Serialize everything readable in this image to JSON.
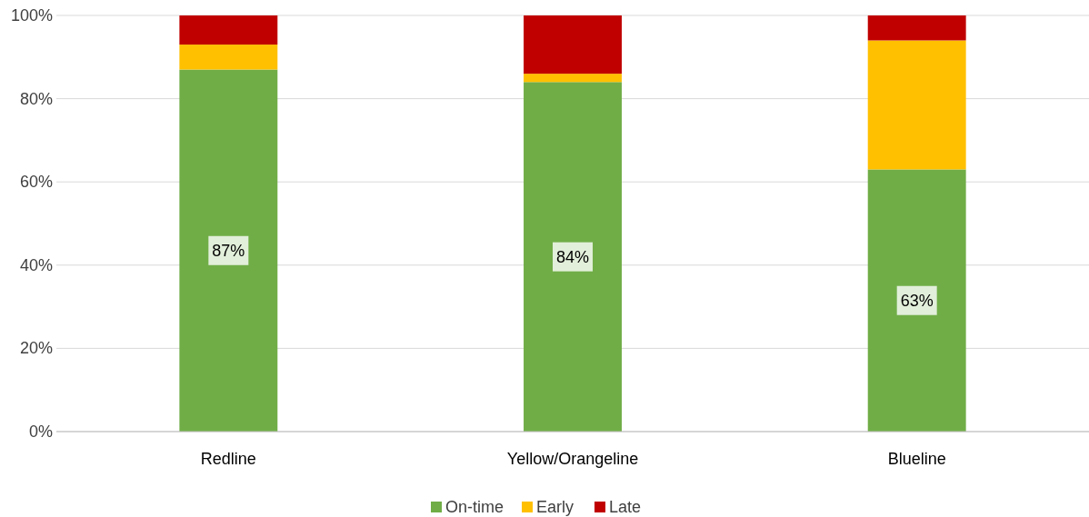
{
  "chart_data": {
    "type": "bar",
    "stacked": true,
    "categories": [
      "Redline",
      "Yellow/Orangeline",
      "Blueline"
    ],
    "series": [
      {
        "name": "On-time",
        "color": "#70ad47",
        "values": [
          87,
          84,
          63
        ],
        "value_labels": [
          "87%",
          "84%",
          "63%"
        ]
      },
      {
        "name": "Early",
        "color": "#ffc000",
        "values": [
          6,
          2,
          31
        ]
      },
      {
        "name": "Late",
        "color": "#c00000",
        "values": [
          7,
          14,
          6
        ]
      }
    ],
    "ylim": [
      0,
      100
    ],
    "yticks": [
      {
        "value": 0,
        "label": "0%"
      },
      {
        "value": 20,
        "label": "20%"
      },
      {
        "value": 40,
        "label": "40%"
      },
      {
        "value": 60,
        "label": "60%"
      },
      {
        "value": 80,
        "label": "80%"
      },
      {
        "value": 100,
        "label": "100%"
      }
    ],
    "grid": "y",
    "legend": "bottom"
  }
}
